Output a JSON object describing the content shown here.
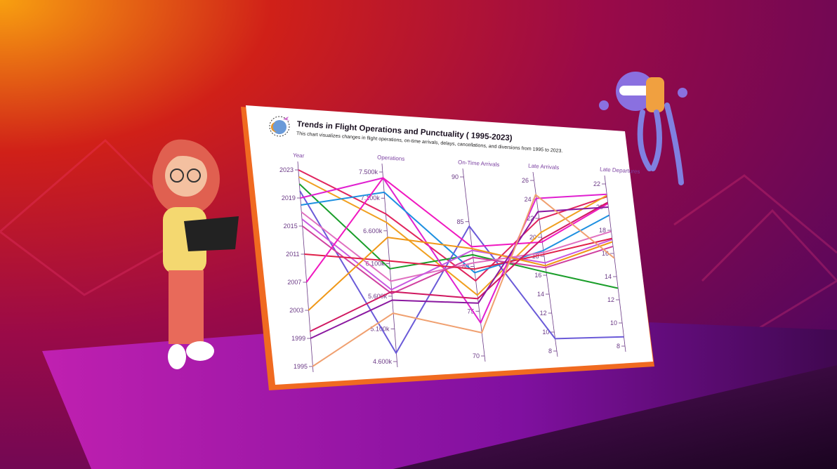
{
  "chart_data": {
    "type": "parallel-coordinates",
    "title": "Trends in Flight Operations and Punctuality ( 1995-2023)",
    "subtitle": "This chart visualizes changes in flight operations, on-time arrivals, delays, cancellations, and diversions from 1995 to 2023.",
    "grid": false,
    "axes": [
      {
        "key": "year",
        "label": "Year",
        "range": [
          1995,
          2023
        ],
        "ticks": [
          "1995",
          "1999",
          "2003",
          "2007",
          "2011",
          "2015",
          "2019",
          "2023"
        ]
      },
      {
        "key": "ops",
        "label": "Operations",
        "range": [
          4600,
          7500
        ],
        "ticks": [
          "4.600k",
          "5.100k",
          "5.600k",
          "6.100k",
          "6.600k",
          "7.100k",
          "7.500k"
        ]
      },
      {
        "key": "ontime",
        "label": "On-Time Arrivals",
        "range": [
          70,
          90
        ],
        "ticks": [
          "70",
          "75",
          "80",
          "85",
          "90"
        ]
      },
      {
        "key": "late_arr",
        "label": "Late Arrivals",
        "range": [
          8,
          26
        ],
        "ticks": [
          "8",
          "10",
          "12",
          "14",
          "16",
          "18",
          "20",
          "22",
          "24",
          "26"
        ]
      },
      {
        "key": "late_dep",
        "label": "Late Departures",
        "range": [
          8,
          22
        ],
        "ticks": [
          "8",
          "10",
          "12",
          "14",
          "16",
          "18",
          "20",
          "22"
        ]
      }
    ],
    "series": [
      {
        "values": [
          2023,
          6860,
          78.4,
          21.9,
          20.9
        ],
        "color": "#e0245e"
      },
      {
        "values": [
          2022,
          6730,
          76.8,
          20.5,
          21.0
        ],
        "color": "#f0a020"
      },
      {
        "values": [
          2021,
          6020,
          81.3,
          16.3,
          13.0
        ],
        "color": "#1a9e2a"
      },
      {
        "values": [
          2020,
          4730,
          84.5,
          9.3,
          8.8
        ],
        "color": "#6a5ad8"
      },
      {
        "values": [
          2019,
          7410,
          73.7,
          24.1,
          21.1
        ],
        "color": "#e020d0"
      },
      {
        "values": [
          2018,
          7190,
          79.3,
          18.6,
          19.3
        ],
        "color": "#1e90e0"
      },
      {
        "values": [
          2017,
          5830,
          80.4,
          18.4,
          17.9
        ],
        "color": "#e070c0"
      },
      {
        "values": [
          2016,
          5700,
          81.8,
          17.3,
          17.2
        ],
        "color": "#c858e0"
      },
      {
        "values": [
          2015,
          5640,
          81.0,
          16.8,
          16.6
        ],
        "color": "#d040a0"
      },
      {
        "values": [
          2011,
          6140,
          79.7,
          18.2,
          17.3
        ],
        "color": "#e0204a"
      },
      {
        "values": [
          2007,
          7410,
          82.2,
          19.5,
          20.3
        ],
        "color": "#f018c0"
      },
      {
        "values": [
          2003,
          6500,
          82.0,
          17.0,
          17.0
        ],
        "color": "#f09818"
      },
      {
        "values": [
          2000,
          5670,
          76.4,
          19.8,
          20.4
        ],
        "color": "#d01860"
      },
      {
        "values": [
          1999,
          5540,
          75.9,
          22.7,
          20.0
        ],
        "color": "#8a18a0"
      },
      {
        "values": [
          1995,
          5340,
          72.6,
          24.5,
          15.6
        ],
        "color": "#f0a070"
      }
    ]
  },
  "colors": {
    "bg_start": "#f08a10",
    "bg_mid": "#c01030",
    "bg_end": "#5a0a6a",
    "card_edge": "#f06a20"
  }
}
